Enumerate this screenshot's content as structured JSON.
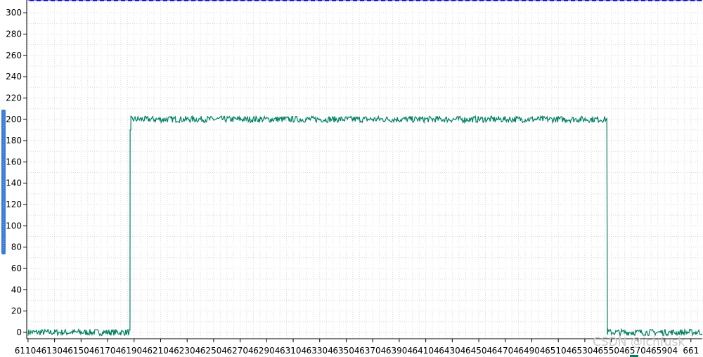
{
  "chart_data": {
    "type": "line",
    "title": "",
    "xlabel": "",
    "ylabel": "",
    "grid": true,
    "xlim": [
      61094,
      66190
    ],
    "ylim": [
      -6,
      312
    ],
    "y_ticks": [
      0,
      20,
      40,
      60,
      80,
      100,
      120,
      140,
      160,
      180,
      200,
      220,
      240,
      260,
      280,
      300
    ],
    "x_tick_labels": [
      "61104",
      "61304",
      "61504",
      "61704",
      "61904",
      "62104",
      "62304",
      "62504",
      "62704",
      "62904",
      "63104",
      "63304",
      "63504",
      "63704",
      "63904",
      "64104",
      "64304",
      "64504",
      "64704",
      "64904",
      "65104",
      "65304",
      "65504",
      "65704",
      "65904",
      "661"
    ],
    "series": [
      {
        "color": "#008060",
        "segments": [
          {
            "x_start": 61104,
            "x_end": 61874,
            "level": 0,
            "noise": 3
          },
          {
            "x_start": 61874,
            "x_end": 61880,
            "level": 190,
            "noise": 0
          },
          {
            "x_start": 61880,
            "x_end": 65474,
            "level": 200,
            "noise": 3
          },
          {
            "x_start": 65474,
            "x_end": 66190,
            "level": 0,
            "noise": 3
          }
        ]
      }
    ]
  },
  "watermark": "CSDN @ichfusk",
  "colors": {
    "grid": "#dcdcdc",
    "border": "#0000cc",
    "handle": "#3a7bd5"
  }
}
